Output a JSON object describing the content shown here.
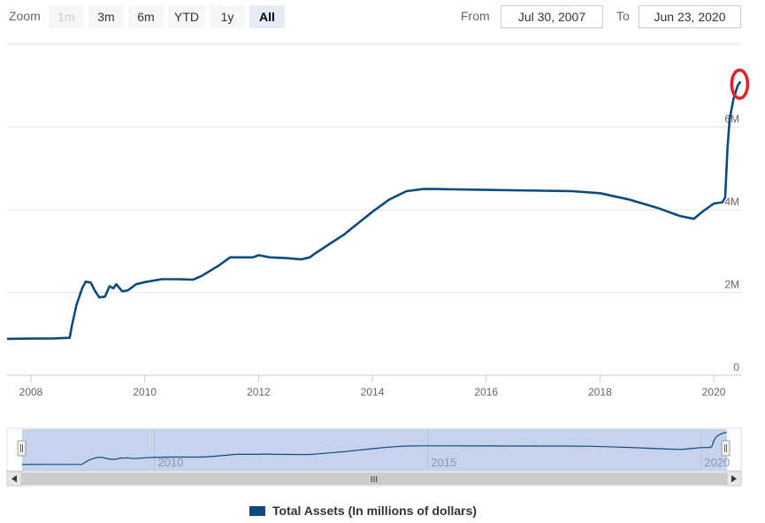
{
  "rangeSelector": {
    "zoom_label": "Zoom",
    "buttons": [
      {
        "label": "1m",
        "state": "disabled"
      },
      {
        "label": "3m",
        "state": "normal"
      },
      {
        "label": "6m",
        "state": "normal"
      },
      {
        "label": "YTD",
        "state": "normal"
      },
      {
        "label": "1y",
        "state": "normal"
      },
      {
        "label": "All",
        "state": "active"
      }
    ],
    "from_label": "From",
    "from_value": "Jul 30, 2007",
    "to_label": "To",
    "to_value": "Jun 23, 2020"
  },
  "navigator": {
    "year_labels": [
      "2010",
      "2015",
      "2020"
    ],
    "scroll_grip": "III"
  },
  "colors": {
    "series": "#0e4a7b",
    "highlight_circle": "#e3202a",
    "navigator_mask": "#c7d3ec",
    "grid": "#e6e6e6"
  },
  "chart_data": {
    "type": "line",
    "title": "",
    "xlabel": "",
    "ylabel": "",
    "x_ticks": [
      "2008",
      "2010",
      "2012",
      "2014",
      "2016",
      "2018",
      "2020"
    ],
    "y_ticks": [
      "0",
      "2M",
      "4M",
      "6M"
    ],
    "xlim": [
      2007.58,
      2020.48
    ],
    "ylim": [
      0,
      8000000
    ],
    "grid": true,
    "legend_position": "bottom",
    "annotation": "red circle around the final (peak) value",
    "series": [
      {
        "name": "Total Assets (In millions of dollars)",
        "color": "#0e4a7b",
        "points": [
          [
            2007.58,
            880000
          ],
          [
            2008.0,
            885000
          ],
          [
            2008.4,
            890000
          ],
          [
            2008.68,
            905000
          ],
          [
            2008.72,
            1200000
          ],
          [
            2008.8,
            1700000
          ],
          [
            2008.9,
            2100000
          ],
          [
            2008.96,
            2260000
          ],
          [
            2009.05,
            2240000
          ],
          [
            2009.12,
            2050000
          ],
          [
            2009.2,
            1880000
          ],
          [
            2009.3,
            1900000
          ],
          [
            2009.38,
            2150000
          ],
          [
            2009.45,
            2100000
          ],
          [
            2009.5,
            2200000
          ],
          [
            2009.6,
            2030000
          ],
          [
            2009.7,
            2050000
          ],
          [
            2009.85,
            2200000
          ],
          [
            2010.0,
            2250000
          ],
          [
            2010.3,
            2320000
          ],
          [
            2010.6,
            2320000
          ],
          [
            2010.85,
            2310000
          ],
          [
            2011.0,
            2400000
          ],
          [
            2011.3,
            2650000
          ],
          [
            2011.5,
            2850000
          ],
          [
            2011.9,
            2850000
          ],
          [
            2012.0,
            2900000
          ],
          [
            2012.2,
            2850000
          ],
          [
            2012.5,
            2830000
          ],
          [
            2012.75,
            2800000
          ],
          [
            2012.9,
            2850000
          ],
          [
            2013.0,
            2950000
          ],
          [
            2013.5,
            3400000
          ],
          [
            2014.0,
            3950000
          ],
          [
            2014.3,
            4250000
          ],
          [
            2014.6,
            4450000
          ],
          [
            2014.9,
            4500000
          ],
          [
            2015.1,
            4500000
          ],
          [
            2016.0,
            4480000
          ],
          [
            2017.0,
            4460000
          ],
          [
            2017.5,
            4450000
          ],
          [
            2018.0,
            4400000
          ],
          [
            2018.5,
            4250000
          ],
          [
            2019.0,
            4050000
          ],
          [
            2019.4,
            3850000
          ],
          [
            2019.65,
            3780000
          ],
          [
            2019.8,
            3950000
          ],
          [
            2020.0,
            4150000
          ],
          [
            2020.15,
            4180000
          ],
          [
            2020.2,
            4300000
          ],
          [
            2020.24,
            5500000
          ],
          [
            2020.28,
            6200000
          ],
          [
            2020.35,
            6700000
          ],
          [
            2020.42,
            7000000
          ],
          [
            2020.47,
            7100000
          ]
        ]
      }
    ]
  },
  "legend": {
    "label": "Total Assets (In millions of dollars)"
  }
}
